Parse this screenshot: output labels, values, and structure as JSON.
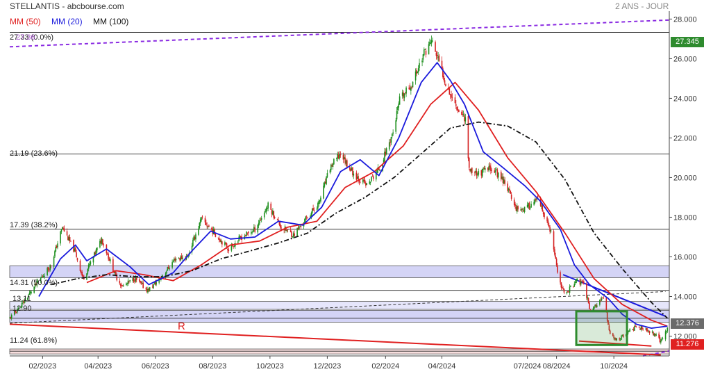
{
  "header": {
    "title": "STELLANTIS - abcbourse.com",
    "period": "2 ANS - JOUR"
  },
  "legend": [
    {
      "label": "MM (50)",
      "color": "#e02020"
    },
    {
      "label": "MM (20)",
      "color": "#1a1adc"
    },
    {
      "label": "MM (100)",
      "color": "#111111"
    }
  ],
  "chart_data": {
    "type": "candlestick",
    "instrument": "STELLANTIS",
    "period": "2 ANS - JOUR",
    "ylim": [
      11.0,
      28.4
    ],
    "xlim": [
      "2022-12-28",
      "2024-11-29"
    ],
    "y_ticks": [
      12.0,
      14.0,
      16.0,
      18.0,
      20.0,
      22.0,
      24.0,
      26.0,
      28.0
    ],
    "y_tick_labels": [
      "12.000",
      "14.000",
      "16.000",
      "18.000",
      "20.000",
      "22.000",
      "24.000",
      "26.000",
      "28.000"
    ],
    "x_ticks": [
      {
        "date": "2023-02-01",
        "label": "02/2023"
      },
      {
        "date": "2023-04-01",
        "label": "04/2023"
      },
      {
        "date": "2023-06-01",
        "label": "06/2023"
      },
      {
        "date": "2023-08-01",
        "label": "08/2023"
      },
      {
        "date": "2023-10-01",
        "label": "10/2023"
      },
      {
        "date": "2023-12-01",
        "label": "12/2023"
      },
      {
        "date": "2024-02-01",
        "label": "02/2024"
      },
      {
        "date": "2024-04-01",
        "label": "04/2024"
      },
      {
        "date": "2024-07-01",
        "label": "07/2024"
      },
      {
        "date": "2024-08-01",
        "label": "08/2024"
      },
      {
        "date": "2024-10-01",
        "label": "10/2024"
      }
    ],
    "grid": false,
    "close_path": [
      [
        "2022-12-28",
        12.9
      ],
      [
        "2023-01-10",
        13.6
      ],
      [
        "2023-01-25",
        14.6
      ],
      [
        "2023-02-10",
        15.6
      ],
      [
        "2023-02-22",
        17.5
      ],
      [
        "2023-03-08",
        16.2
      ],
      [
        "2023-03-16",
        14.9
      ],
      [
        "2023-03-28",
        16.1
      ],
      [
        "2023-04-05",
        16.9
      ],
      [
        "2023-04-20",
        15.0
      ],
      [
        "2023-04-27",
        14.5
      ],
      [
        "2023-05-10",
        14.9
      ],
      [
        "2023-05-24",
        14.3
      ],
      [
        "2023-06-08",
        15.0
      ],
      [
        "2023-06-22",
        15.9
      ],
      [
        "2023-07-05",
        16.0
      ],
      [
        "2023-07-20",
        17.9
      ],
      [
        "2023-08-03",
        17.2
      ],
      [
        "2023-08-18",
        16.4
      ],
      [
        "2023-09-01",
        17.0
      ],
      [
        "2023-09-15",
        17.4
      ],
      [
        "2023-09-29",
        18.6
      ],
      [
        "2023-10-13",
        17.5
      ],
      [
        "2023-10-26",
        17.1
      ],
      [
        "2023-11-08",
        17.9
      ],
      [
        "2023-11-22",
        18.7
      ],
      [
        "2023-12-04",
        20.5
      ],
      [
        "2023-12-15",
        21.2
      ],
      [
        "2023-12-29",
        20.2
      ],
      [
        "2024-01-12",
        19.6
      ],
      [
        "2024-01-26",
        20.5
      ],
      [
        "2024-02-09",
        22.3
      ],
      [
        "2024-02-16",
        23.9
      ],
      [
        "2024-02-29",
        24.7
      ],
      [
        "2024-03-12",
        26.2
      ],
      [
        "2024-03-21",
        26.9
      ],
      [
        "2024-03-29",
        25.8
      ],
      [
        "2024-04-05",
        24.8
      ],
      [
        "2024-04-12",
        24.0
      ],
      [
        "2024-04-19",
        23.4
      ],
      [
        "2024-04-26",
        23.0
      ],
      [
        "2024-04-30",
        20.4
      ],
      [
        "2024-05-10",
        20.2
      ],
      [
        "2024-05-24",
        20.5
      ],
      [
        "2024-06-07",
        19.8
      ],
      [
        "2024-06-18",
        18.5
      ],
      [
        "2024-06-28",
        18.4
      ],
      [
        "2024-07-12",
        18.9
      ],
      [
        "2024-07-26",
        17.2
      ],
      [
        "2024-08-02",
        15.2
      ],
      [
        "2024-08-09",
        14.1
      ],
      [
        "2024-08-23",
        14.8
      ],
      [
        "2024-08-30",
        14.6
      ],
      [
        "2024-09-06",
        13.3
      ],
      [
        "2024-09-13",
        13.6
      ],
      [
        "2024-09-20",
        13.9
      ],
      [
        "2024-09-27",
        12.1
      ],
      [
        "2024-10-04",
        11.8
      ],
      [
        "2024-10-11",
        12.0
      ],
      [
        "2024-10-25",
        12.5
      ],
      [
        "2024-11-08",
        12.2
      ],
      [
        "2024-11-15",
        12.1
      ],
      [
        "2024-11-20",
        11.7
      ],
      [
        "2024-11-27",
        12.4
      ]
    ],
    "series": [
      {
        "name": "MM (50)",
        "color": "#e02020",
        "points": [
          [
            "2023-03-20",
            14.7
          ],
          [
            "2023-04-20",
            15.3
          ],
          [
            "2023-05-20",
            15.1
          ],
          [
            "2023-06-20",
            14.8
          ],
          [
            "2023-07-20",
            15.6
          ],
          [
            "2023-08-20",
            16.6
          ],
          [
            "2023-09-20",
            16.8
          ],
          [
            "2023-10-20",
            17.5
          ],
          [
            "2023-11-20",
            17.8
          ],
          [
            "2023-12-20",
            19.5
          ],
          [
            "2024-01-20",
            20.3
          ],
          [
            "2024-02-20",
            21.6
          ],
          [
            "2024-03-20",
            23.7
          ],
          [
            "2024-04-15",
            24.8
          ],
          [
            "2024-05-10",
            23.4
          ],
          [
            "2024-06-10",
            21.0
          ],
          [
            "2024-07-10",
            19.3
          ],
          [
            "2024-08-10",
            17.2
          ],
          [
            "2024-09-10",
            14.9
          ],
          [
            "2024-10-10",
            13.6
          ],
          [
            "2024-11-10",
            12.8
          ],
          [
            "2024-11-27",
            12.5
          ]
        ]
      },
      {
        "name": "MM (20)",
        "color": "#1a1adc",
        "points": [
          [
            "2023-01-28",
            14.0
          ],
          [
            "2023-02-20",
            15.9
          ],
          [
            "2023-03-08",
            16.6
          ],
          [
            "2023-03-20",
            15.8
          ],
          [
            "2023-04-10",
            16.4
          ],
          [
            "2023-05-05",
            15.5
          ],
          [
            "2023-05-25",
            14.6
          ],
          [
            "2023-06-20",
            15.2
          ],
          [
            "2023-07-10",
            16.3
          ],
          [
            "2023-07-30",
            17.3
          ],
          [
            "2023-08-20",
            16.9
          ],
          [
            "2023-09-15",
            17.0
          ],
          [
            "2023-10-10",
            17.8
          ],
          [
            "2023-11-05",
            17.6
          ],
          [
            "2023-11-25",
            18.5
          ],
          [
            "2023-12-15",
            20.3
          ],
          [
            "2024-01-05",
            20.9
          ],
          [
            "2024-01-25",
            20.1
          ],
          [
            "2024-02-15",
            22.0
          ],
          [
            "2024-03-10",
            24.8
          ],
          [
            "2024-03-27",
            25.8
          ],
          [
            "2024-04-10",
            24.9
          ],
          [
            "2024-04-25",
            23.7
          ],
          [
            "2024-05-15",
            21.3
          ],
          [
            "2024-06-05",
            20.5
          ],
          [
            "2024-06-28",
            19.6
          ],
          [
            "2024-07-15",
            18.8
          ],
          [
            "2024-08-05",
            17.4
          ],
          [
            "2024-08-20",
            15.6
          ],
          [
            "2024-09-05",
            14.6
          ],
          [
            "2024-09-25",
            13.9
          ],
          [
            "2024-10-10",
            13.1
          ],
          [
            "2024-10-25",
            12.6
          ],
          [
            "2024-11-10",
            12.4
          ],
          [
            "2024-11-27",
            12.5
          ]
        ]
      },
      {
        "name": "MM (100)",
        "color": "#111111",
        "points": [
          [
            "2023-02-10",
            14.6
          ],
          [
            "2023-03-10",
            14.9
          ],
          [
            "2023-04-10",
            15.1
          ],
          [
            "2023-05-10",
            15.0
          ],
          [
            "2023-06-10",
            15.0
          ],
          [
            "2023-07-10",
            15.3
          ],
          [
            "2023-08-10",
            15.9
          ],
          [
            "2023-09-10",
            16.3
          ],
          [
            "2023-10-10",
            16.7
          ],
          [
            "2023-11-10",
            17.2
          ],
          [
            "2023-12-10",
            18.2
          ],
          [
            "2024-01-10",
            19.0
          ],
          [
            "2024-02-10",
            20.0
          ],
          [
            "2024-03-10",
            21.2
          ],
          [
            "2024-04-10",
            22.5
          ],
          [
            "2024-05-10",
            22.8
          ],
          [
            "2024-06-10",
            22.6
          ],
          [
            "2024-07-10",
            21.8
          ],
          [
            "2024-08-10",
            19.9
          ],
          [
            "2024-09-10",
            17.2
          ],
          [
            "2024-10-10",
            15.4
          ],
          [
            "2024-11-10",
            13.7
          ],
          [
            "2024-11-27",
            12.9
          ]
        ]
      }
    ],
    "horizontal_levels": [
      {
        "value": 27.33,
        "label": "27.33 (0.0%)"
      },
      {
        "value": 21.19,
        "label": "21.19 (23.6%)"
      },
      {
        "value": 17.39,
        "label": "17.39 (38.2%)"
      },
      {
        "value": 14.31,
        "label": "14.31 (50.0%)"
      },
      {
        "value": 12.9,
        "label": "12.90"
      },
      {
        "value": 11.24,
        "label": "11.24 (61.8%)"
      }
    ],
    "overlapping_labels": [
      "27.36",
      "13.11"
    ],
    "zones": [
      {
        "from": 14.95,
        "to": 15.55,
        "color": "#d4d4f6"
      },
      {
        "from": 12.7,
        "to": 13.3,
        "color": "#d4d4f6"
      },
      {
        "from": 13.35,
        "to": 13.75,
        "color": "#e6e6fb"
      },
      {
        "from": 11.1,
        "to": 11.35,
        "color": "#f7dede"
      }
    ],
    "trendlines": [
      {
        "from": [
          "2022-12-28",
          26.6
        ],
        "to": [
          "2024-11-29",
          27.95
        ],
        "color": "#8a2be2",
        "style": "dashed"
      },
      {
        "from": [
          "2024-11-01",
          11.0
        ],
        "to": [
          "2024-11-29",
          11.25
        ],
        "color": "#8a2be2",
        "style": "dashed"
      },
      {
        "from": [
          "2022-12-28",
          12.6
        ],
        "to": [
          "2024-11-20",
          11.05
        ],
        "color": "#e02020",
        "style": "solid"
      },
      {
        "from": [
          "2022-12-28",
          12.65
        ],
        "to": [
          "2024-11-25",
          14.25
        ],
        "color": "#333333",
        "style": "dashed"
      },
      {
        "from": [
          "2024-08-08",
          15.1
        ],
        "to": [
          "2024-11-25",
          13.0
        ],
        "color": "#1a1adc",
        "style": "solid"
      },
      {
        "from": [
          "2024-08-25",
          11.75
        ],
        "to": [
          "2024-11-10",
          11.5
        ],
        "color": "#e02020",
        "style": "solid"
      }
    ],
    "rectangle": {
      "from": [
        "2024-08-22",
        13.25
      ],
      "to": [
        "2024-10-15",
        11.55
      ],
      "color": "#2e8b2e"
    },
    "annotation": {
      "text": "R",
      "date": "2023-06-01",
      "value": 12.05,
      "color": "#e02020"
    },
    "price_tags": [
      {
        "value": 27.345,
        "label": "27.345",
        "color": "#2e8b2e"
      },
      {
        "value": 12.376,
        "label": "12.376",
        "color": "#6b6b6b"
      },
      {
        "value": 11.276,
        "label": "11.276",
        "color": "#e02020"
      }
    ]
  }
}
